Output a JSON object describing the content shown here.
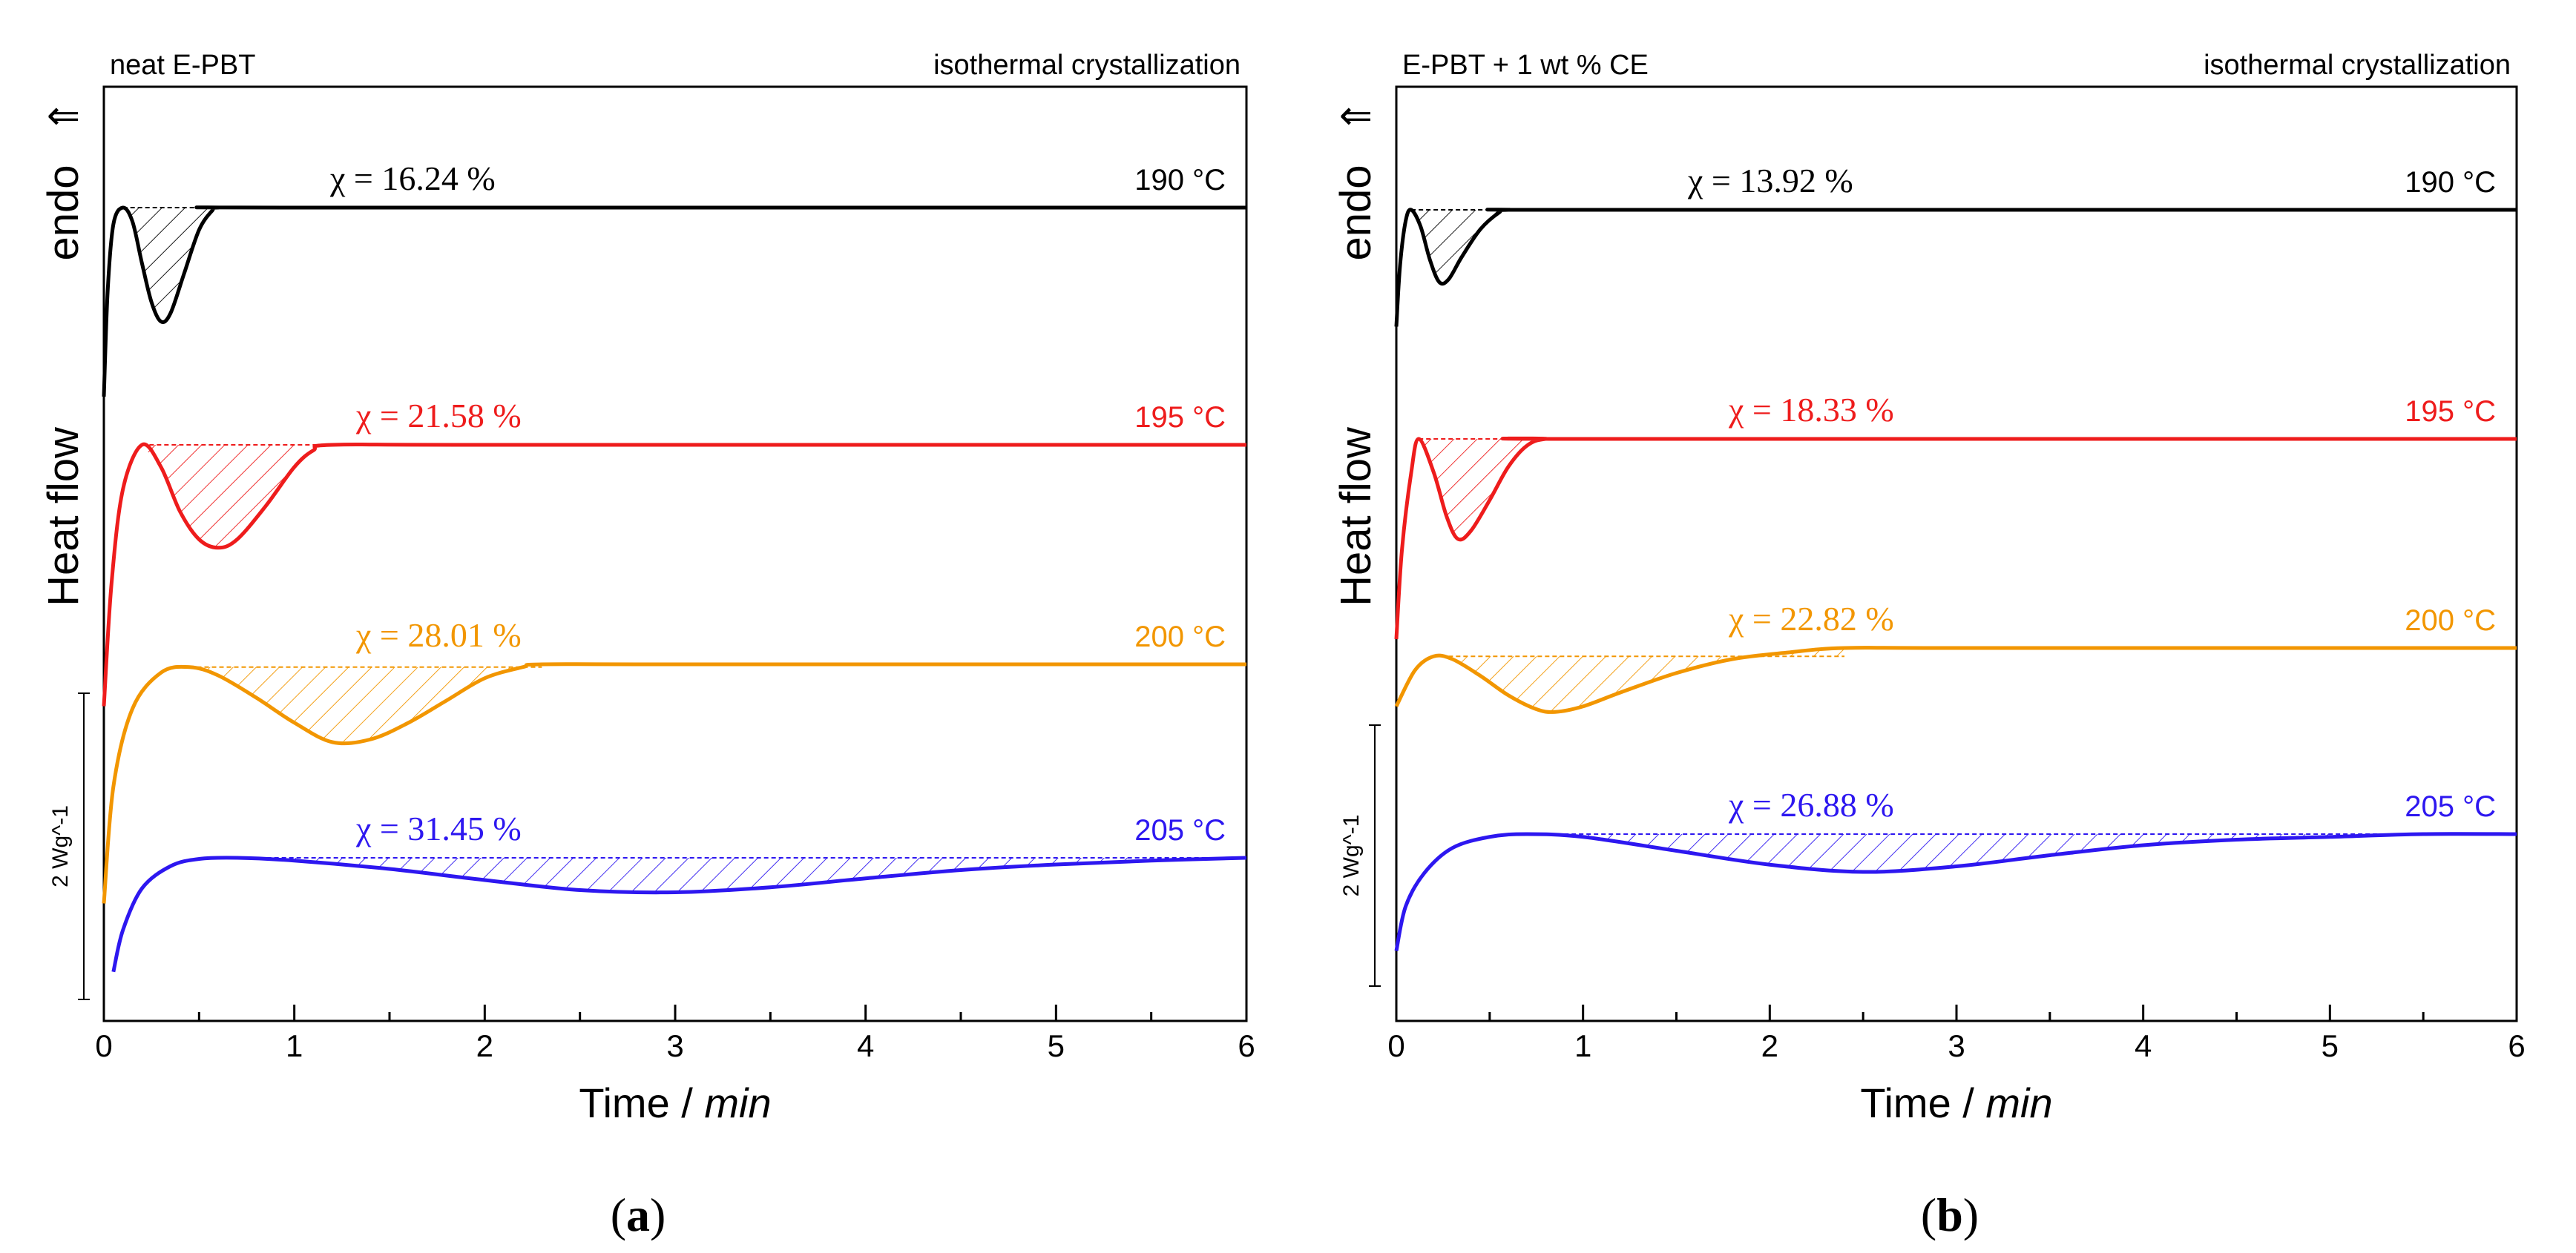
{
  "chart_data": [
    {
      "panel": "a",
      "type": "line",
      "caption_letter": "a",
      "title_left": "neat E-PBT",
      "title_right": "isothermal crystallization",
      "xlabel_main": "Time / ",
      "xlabel_unit": "min",
      "ylabel": "Heat flow",
      "y_direction_label": "endo",
      "y_direction_arrow": "⇑",
      "scale_bar_label": "2 Wg^-1",
      "xlim": [
        0,
        6
      ],
      "x_ticks": [
        "0",
        "1",
        "2",
        "3",
        "4",
        "5",
        "6"
      ],
      "series": [
        {
          "name": "190 °C",
          "color": "#000000",
          "crystallinity_label": "χ = 16.24 %",
          "points": [
            [
              0,
              -3.4
            ],
            [
              0.02,
              -1.5
            ],
            [
              0.05,
              -0.3
            ],
            [
              0.1,
              0
            ],
            [
              0.15,
              -0.25
            ],
            [
              0.2,
              -1
            ],
            [
              0.25,
              -1.7
            ],
            [
              0.3,
              -2.05
            ],
            [
              0.35,
              -1.9
            ],
            [
              0.42,
              -1.2
            ],
            [
              0.5,
              -0.4
            ],
            [
              0.57,
              -0.05
            ],
            [
              0.6,
              0
            ],
            [
              1,
              0
            ],
            [
              6,
              0
            ]
          ]
        },
        {
          "name": "195 °C",
          "color": "#ee1c1c",
          "crystallinity_label": "χ = 21.58 %",
          "points": [
            [
              0,
              -4.7
            ],
            [
              0.04,
              -2.5
            ],
            [
              0.1,
              -0.8
            ],
            [
              0.2,
              0
            ],
            [
              0.3,
              -0.4
            ],
            [
              0.4,
              -1.2
            ],
            [
              0.5,
              -1.7
            ],
            [
              0.6,
              -1.85
            ],
            [
              0.7,
              -1.7
            ],
            [
              0.85,
              -1.1
            ],
            [
              1,
              -0.4
            ],
            [
              1.1,
              -0.1
            ],
            [
              1.2,
              0
            ],
            [
              2,
              0
            ],
            [
              6,
              0
            ]
          ]
        },
        {
          "name": "200 °C",
          "color": "#f29600",
          "crystallinity_label": "χ = 28.01 %",
          "points": [
            [
              0,
              -4.3
            ],
            [
              0.05,
              -2.2
            ],
            [
              0.15,
              -0.8
            ],
            [
              0.3,
              -0.15
            ],
            [
              0.45,
              -0.05
            ],
            [
              0.6,
              -0.2
            ],
            [
              0.8,
              -0.6
            ],
            [
              1,
              -1.05
            ],
            [
              1.2,
              -1.4
            ],
            [
              1.4,
              -1.35
            ],
            [
              1.6,
              -1.05
            ],
            [
              1.8,
              -0.65
            ],
            [
              2,
              -0.25
            ],
            [
              2.2,
              -0.05
            ],
            [
              2.3,
              0
            ],
            [
              3,
              0
            ],
            [
              6,
              0
            ]
          ]
        },
        {
          "name": "205 °C",
          "color": "#2d17f0",
          "crystallinity_label": "χ = 31.45 %",
          "points": [
            [
              0.05,
              -2.05
            ],
            [
              0.1,
              -1.3
            ],
            [
              0.2,
              -0.55
            ],
            [
              0.35,
              -0.15
            ],
            [
              0.5,
              -0.02
            ],
            [
              0.7,
              0
            ],
            [
              1,
              -0.05
            ],
            [
              1.5,
              -0.2
            ],
            [
              2,
              -0.4
            ],
            [
              2.5,
              -0.58
            ],
            [
              3,
              -0.62
            ],
            [
              3.5,
              -0.53
            ],
            [
              4,
              -0.37
            ],
            [
              4.5,
              -0.22
            ],
            [
              5,
              -0.12
            ],
            [
              5.5,
              -0.05
            ],
            [
              6,
              0
            ]
          ]
        }
      ]
    },
    {
      "panel": "b",
      "type": "line",
      "caption_letter": "b",
      "title_left": "E-PBT + 1 wt % CE",
      "title_right": "isothermal crystallization",
      "xlabel_main": "Time / ",
      "xlabel_unit": "min",
      "ylabel": "Heat flow",
      "y_direction_label": "endo",
      "y_direction_arrow": "⇑",
      "scale_bar_label": "2 Wg^-1",
      "xlim": [
        0,
        6
      ],
      "x_ticks": [
        "0",
        "1",
        "2",
        "3",
        "4",
        "5",
        "6"
      ],
      "series": [
        {
          "name": "190 °C",
          "color": "#000000",
          "crystallinity_label": "χ = 13.92 %",
          "points": [
            [
              0,
              -2.1
            ],
            [
              0.02,
              -1
            ],
            [
              0.05,
              -0.2
            ],
            [
              0.08,
              0
            ],
            [
              0.13,
              -0.3
            ],
            [
              0.18,
              -0.9
            ],
            [
              0.23,
              -1.3
            ],
            [
              0.28,
              -1.25
            ],
            [
              0.35,
              -0.85
            ],
            [
              0.45,
              -0.35
            ],
            [
              0.55,
              -0.05
            ],
            [
              0.6,
              0
            ],
            [
              1,
              0
            ],
            [
              6,
              0
            ]
          ]
        },
        {
          "name": "195 °C",
          "color": "#ee1c1c",
          "crystallinity_label": "χ = 18.33 %",
          "points": [
            [
              0,
              -3.6
            ],
            [
              0.03,
              -2
            ],
            [
              0.08,
              -0.6
            ],
            [
              0.12,
              0
            ],
            [
              0.2,
              -0.6
            ],
            [
              0.27,
              -1.4
            ],
            [
              0.33,
              -1.8
            ],
            [
              0.4,
              -1.65
            ],
            [
              0.5,
              -1.1
            ],
            [
              0.6,
              -0.5
            ],
            [
              0.7,
              -0.12
            ],
            [
              0.8,
              0
            ],
            [
              1,
              0
            ],
            [
              6,
              0
            ]
          ]
        },
        {
          "name": "200 °C",
          "color": "#f29600",
          "crystallinity_label": "χ = 22.82 %",
          "points": [
            [
              0,
              -1.05
            ],
            [
              0.1,
              -0.4
            ],
            [
              0.2,
              -0.15
            ],
            [
              0.3,
              -0.2
            ],
            [
              0.45,
              -0.5
            ],
            [
              0.6,
              -0.85
            ],
            [
              0.75,
              -1.1
            ],
            [
              0.85,
              -1.15
            ],
            [
              1,
              -1.05
            ],
            [
              1.2,
              -0.8
            ],
            [
              1.5,
              -0.45
            ],
            [
              1.8,
              -0.2
            ],
            [
              2.1,
              -0.08
            ],
            [
              2.4,
              0
            ],
            [
              3,
              0
            ],
            [
              6,
              0
            ]
          ]
        },
        {
          "name": "205 °C",
          "color": "#2d17f0",
          "crystallinity_label": "χ = 26.88 %",
          "points": [
            [
              0,
              -2.1
            ],
            [
              0.05,
              -1.3
            ],
            [
              0.15,
              -0.7
            ],
            [
              0.3,
              -0.25
            ],
            [
              0.5,
              -0.05
            ],
            [
              0.7,
              0
            ],
            [
              1,
              -0.05
            ],
            [
              1.5,
              -0.3
            ],
            [
              2,
              -0.55
            ],
            [
              2.5,
              -0.68
            ],
            [
              3,
              -0.58
            ],
            [
              3.5,
              -0.38
            ],
            [
              4,
              -0.2
            ],
            [
              4.5,
              -0.1
            ],
            [
              5,
              -0.05
            ],
            [
              5.5,
              0
            ],
            [
              6,
              0
            ]
          ]
        }
      ]
    }
  ]
}
